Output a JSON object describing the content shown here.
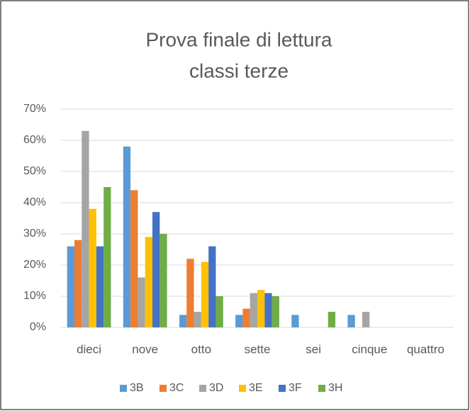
{
  "chart_data": {
    "type": "bar",
    "title": [
      "Prova finale di lettura",
      "classi terze"
    ],
    "categories": [
      "dieci",
      "nove",
      "otto",
      "sette",
      "sei",
      "cinque",
      "quattro"
    ],
    "series": [
      {
        "name": "3B",
        "color": "#5b9bd5",
        "values": [
          26,
          58,
          4,
          4,
          4,
          4,
          0
        ]
      },
      {
        "name": "3C",
        "color": "#ed7d31",
        "values": [
          28,
          44,
          22,
          6,
          0,
          0,
          0
        ]
      },
      {
        "name": "3D",
        "color": "#a5a5a5",
        "values": [
          63,
          16,
          5,
          11,
          0,
          5,
          0
        ]
      },
      {
        "name": "3E",
        "color": "#ffc000",
        "values": [
          38,
          29,
          21,
          12,
          0,
          0,
          0
        ]
      },
      {
        "name": "3F",
        "color": "#4472c4",
        "values": [
          26,
          37,
          26,
          11,
          0,
          0,
          0
        ]
      },
      {
        "name": "3H",
        "color": "#70ad47",
        "values": [
          45,
          30,
          10,
          10,
          5,
          0,
          0
        ]
      }
    ],
    "ylim": [
      0,
      70
    ],
    "yticks": [
      {
        "value": 0,
        "label": "0%"
      },
      {
        "value": 10,
        "label": "10%"
      },
      {
        "value": 20,
        "label": "20%"
      },
      {
        "value": 30,
        "label": "30%"
      },
      {
        "value": 40,
        "label": "40%"
      },
      {
        "value": 50,
        "label": "50%"
      },
      {
        "value": 60,
        "label": "60%"
      },
      {
        "value": 70,
        "label": "70%"
      }
    ],
    "grid": true,
    "legend": "bottom"
  }
}
